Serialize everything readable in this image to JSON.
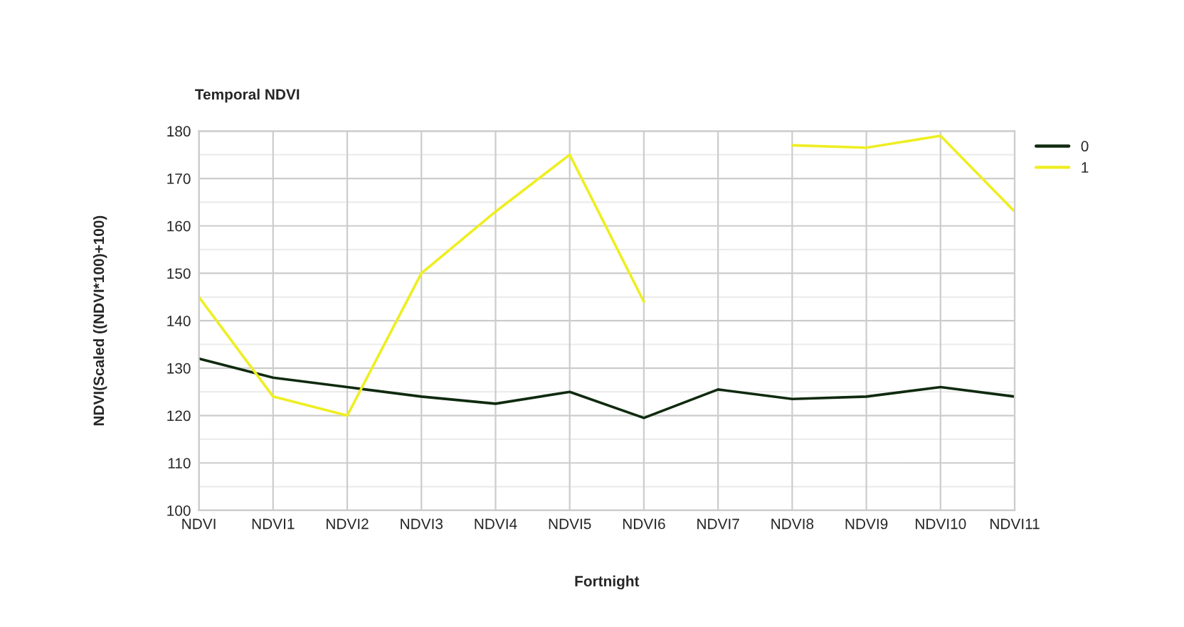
{
  "chart_data": {
    "type": "line",
    "title": "Temporal NDVI",
    "xlabel": "Fortnight",
    "ylabel": "NDVI(Scaled ((NDVI*100)+100)",
    "categories": [
      "NDVI",
      "NDVI1",
      "NDVI2",
      "NDVI3",
      "NDVI4",
      "NDVI5",
      "NDVI6",
      "NDVI7",
      "NDVI8",
      "NDVI9",
      "NDVI10",
      "NDVI11"
    ],
    "series": [
      {
        "name": "0",
        "color": "#0f2a0f",
        "values": [
          132,
          128,
          126,
          124,
          122.5,
          125,
          119.5,
          125.5,
          123.5,
          124,
          126,
          124
        ]
      },
      {
        "name": "1",
        "color": "#eeee22",
        "values": [
          145,
          124,
          120,
          150,
          163,
          175,
          144,
          null,
          177,
          176.5,
          179,
          163
        ]
      }
    ],
    "ylim": [
      100,
      180
    ],
    "yticks": [
      100,
      110,
      120,
      130,
      140,
      150,
      160,
      170,
      180
    ],
    "grid": true,
    "legend": "top right",
    "marker": "none",
    "line_style": "solid"
  }
}
